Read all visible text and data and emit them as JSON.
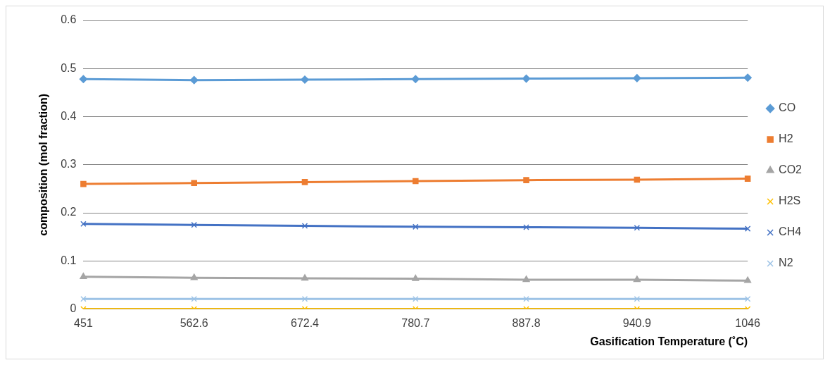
{
  "chart_data": {
    "type": "line",
    "xlabel": "Gasification Temperature (˚C)",
    "ylabel": "composition (mol fraction)",
    "categories": [
      "451",
      "562.6",
      "672.4",
      "780.7",
      "887.8",
      "940.9",
      "1046"
    ],
    "series": [
      {
        "name": "CO",
        "color": "#5b9bd5",
        "marker": "diamond",
        "values": [
          0.478,
          0.476,
          0.477,
          0.478,
          0.479,
          0.48,
          0.481
        ]
      },
      {
        "name": "H2",
        "color": "#ed7d31",
        "marker": "square",
        "values": [
          0.26,
          0.262,
          0.264,
          0.266,
          0.268,
          0.269,
          0.271
        ]
      },
      {
        "name": "CO2",
        "color": "#a5a5a5",
        "marker": "triangle",
        "values": [
          0.067,
          0.065,
          0.064,
          0.063,
          0.061,
          0.061,
          0.059
        ]
      },
      {
        "name": "H2S",
        "color": "#ffc000",
        "marker": "cross",
        "values": [
          0,
          0,
          0,
          0,
          0,
          0,
          0
        ]
      },
      {
        "name": "CH4",
        "color": "#4472c4",
        "marker": "cross",
        "values": [
          0.177,
          0.175,
          0.173,
          0.171,
          0.17,
          0.169,
          0.167
        ]
      },
      {
        "name": "N2",
        "color": "#9dc3e6",
        "marker": "cross",
        "values": [
          0.021,
          0.021,
          0.021,
          0.021,
          0.021,
          0.021,
          0.021
        ]
      }
    ],
    "ylim": [
      0,
      0.6
    ],
    "yticks": [
      0,
      0.1,
      0.2,
      0.3,
      0.4,
      0.5,
      0.6
    ],
    "grid": "y",
    "legend": "right"
  }
}
